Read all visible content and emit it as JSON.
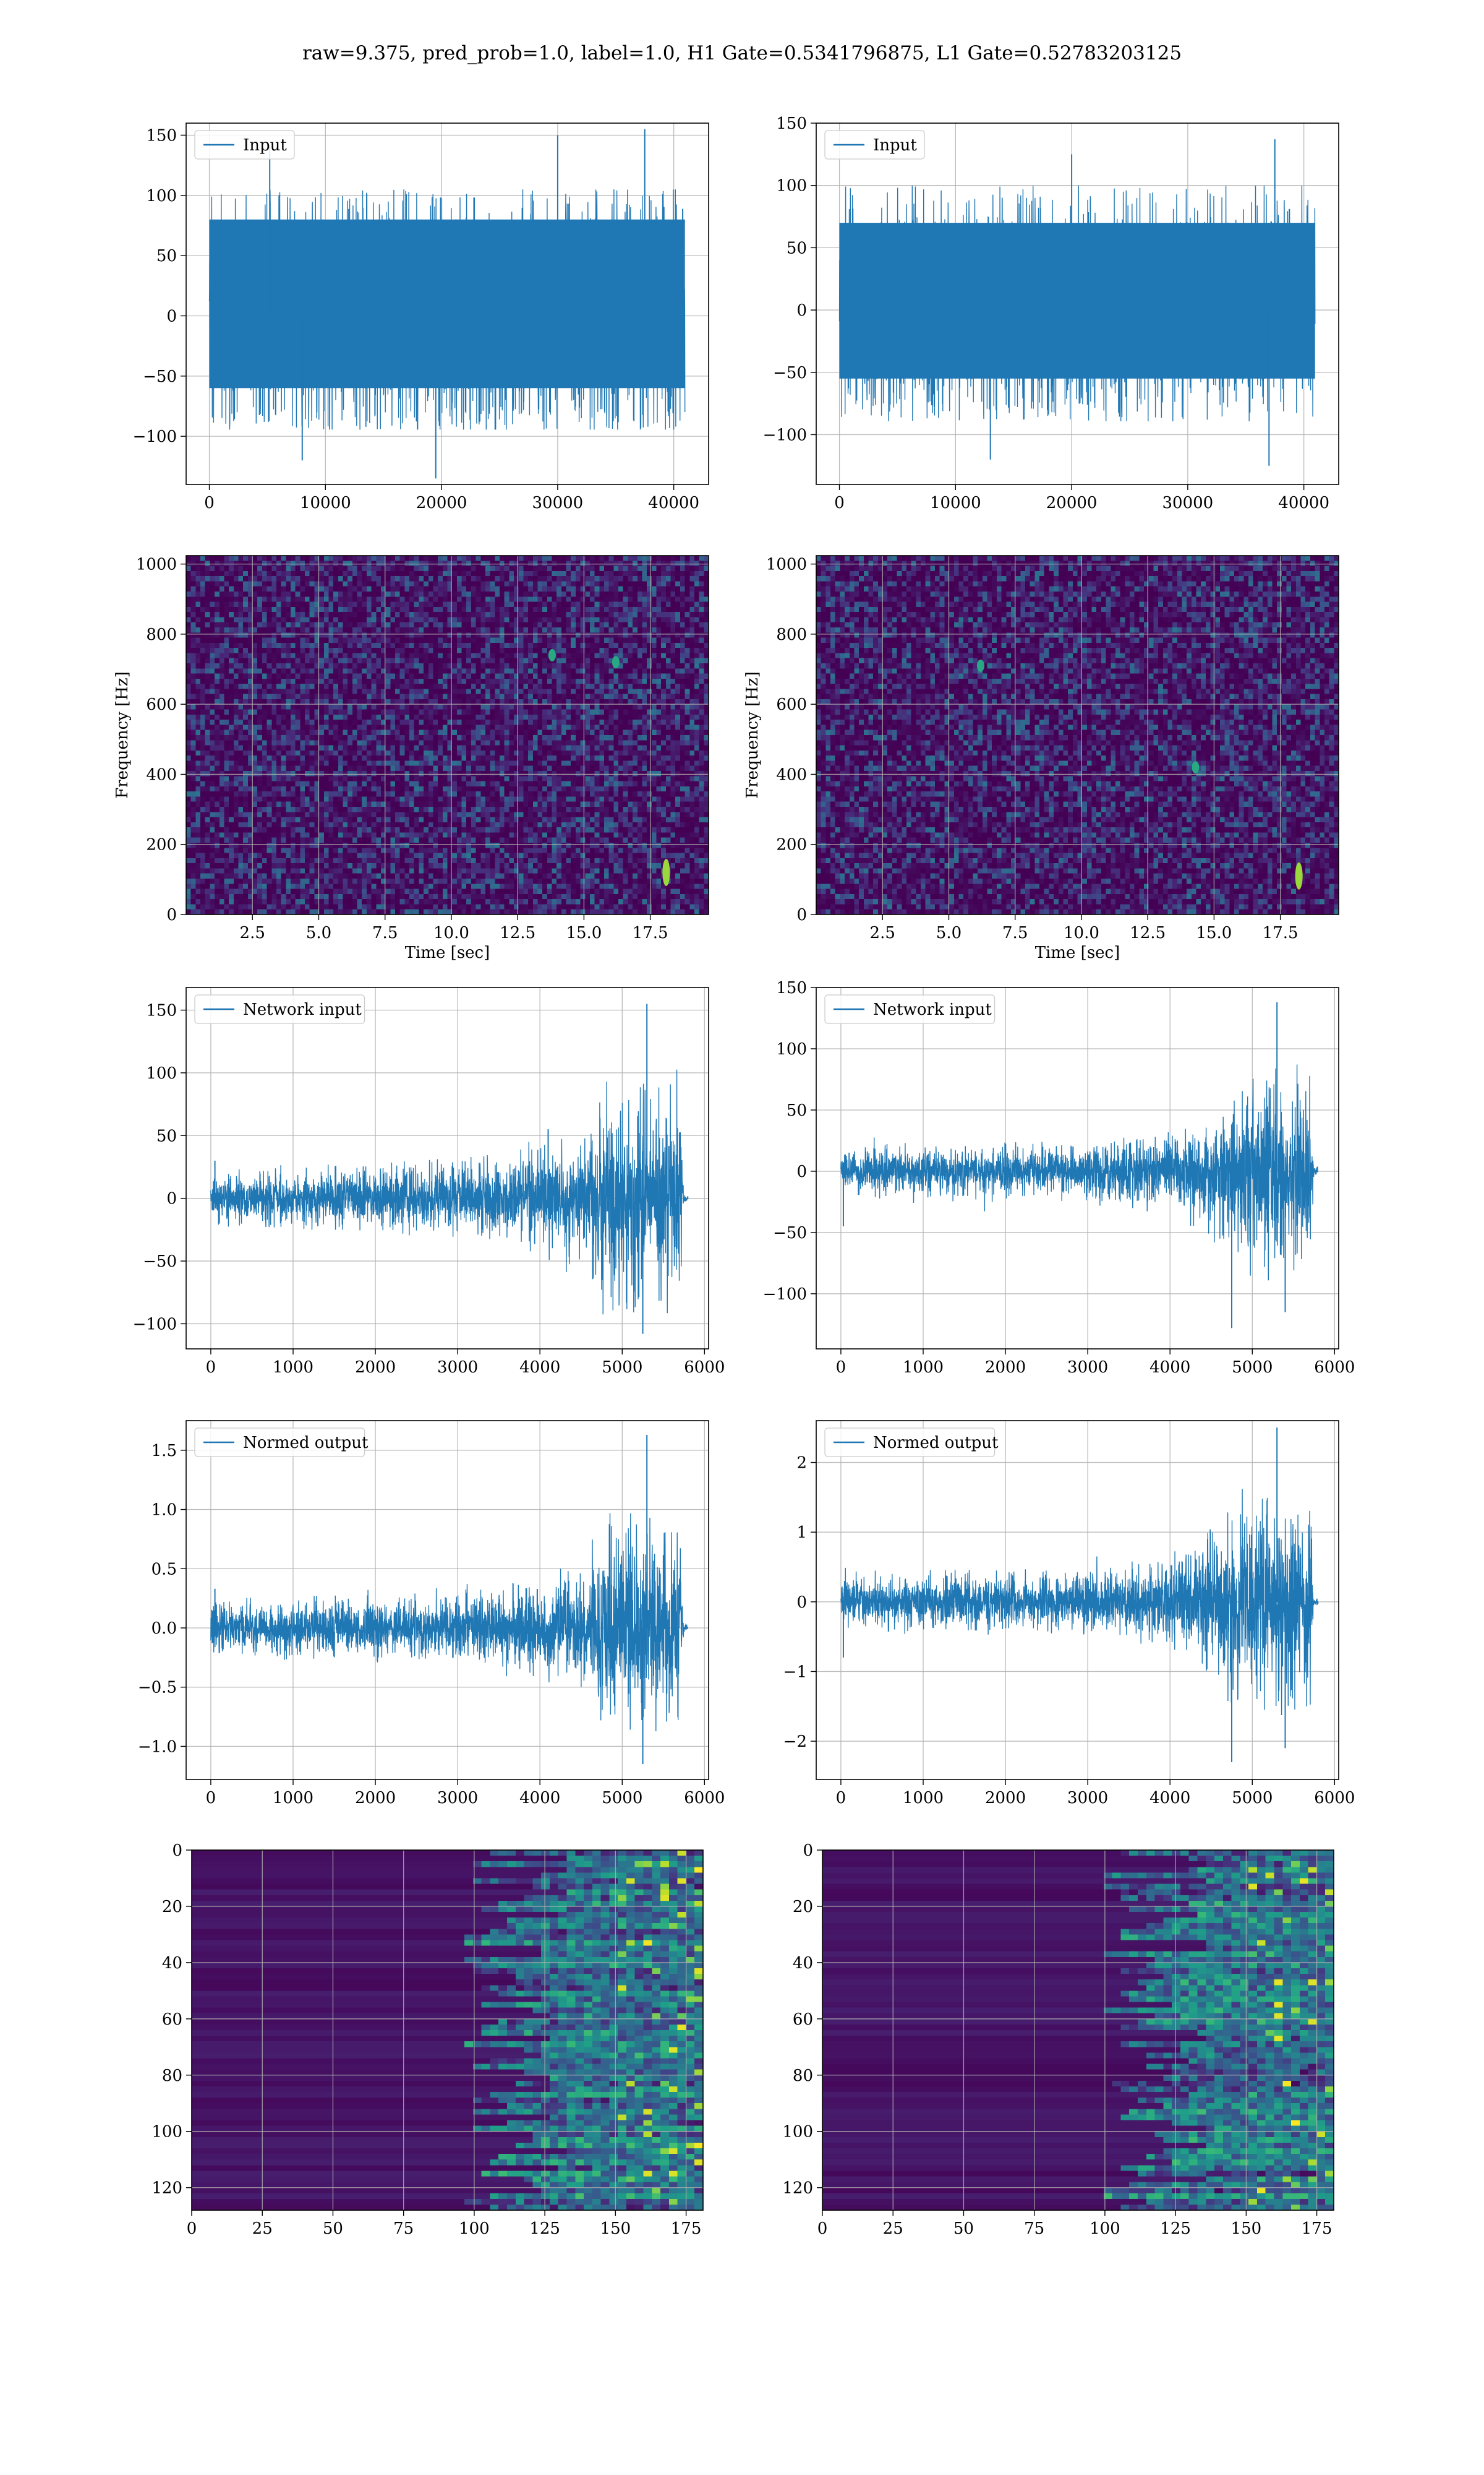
{
  "figure": {
    "suptitle": "raw=9.375, pred_prob=1.0, label=1.0, H1 Gate=0.5341796875, L1 Gate=0.52783203125",
    "line_color": "#1f77b4",
    "grid_color": "#b0b0b0",
    "colormap": "viridis"
  },
  "chart_data": [
    {
      "id": "h1-input",
      "type": "line",
      "legend": "Input",
      "xlim": [
        -2000,
        43000
      ],
      "ylim": [
        -140,
        160
      ],
      "xticks": [
        0,
        10000,
        20000,
        30000,
        40000
      ],
      "yticks": [
        -100,
        -50,
        0,
        50,
        100,
        150
      ],
      "series": [
        {
          "name": "Input",
          "x_range": [
            0,
            40960
          ],
          "envelope": [
            -90,
            100
          ],
          "core": [
            -60,
            80
          ],
          "peaks": [
            [
              5200,
              140
            ],
            [
              30000,
              150
            ],
            [
              37500,
              155
            ],
            [
              19500,
              -135
            ],
            [
              8000,
              -120
            ]
          ]
        }
      ]
    },
    {
      "id": "l1-input",
      "type": "line",
      "legend": "Input",
      "xlim": [
        -2000,
        43000
      ],
      "ylim": [
        -140,
        150
      ],
      "xticks": [
        0,
        10000,
        20000,
        30000,
        40000
      ],
      "yticks": [
        -100,
        -50,
        0,
        50,
        100,
        150
      ],
      "series": [
        {
          "name": "Input",
          "x_range": [
            0,
            40960
          ],
          "envelope": [
            -85,
            95
          ],
          "core": [
            -55,
            70
          ],
          "peaks": [
            [
              37500,
              137
            ],
            [
              20000,
              125
            ],
            [
              37000,
              -125
            ],
            [
              13000,
              -120
            ]
          ]
        }
      ]
    },
    {
      "id": "h1-spectrogram",
      "type": "heatmap",
      "xlabel": "Time [sec]",
      "ylabel": "Frequency [Hz]",
      "xlim": [
        0,
        19.7
      ],
      "ylim": [
        0,
        1024
      ],
      "xticks": [
        2.5,
        5.0,
        7.5,
        10.0,
        12.5,
        15.0,
        17.5
      ],
      "yticks": [
        0,
        200,
        400,
        600,
        800,
        1000
      ],
      "hotspots": [
        [
          18.1,
          120
        ],
        [
          13.8,
          740
        ],
        [
          16.2,
          720
        ]
      ]
    },
    {
      "id": "l1-spectrogram",
      "type": "heatmap",
      "xlabel": "Time [sec]",
      "ylabel": "Frequency [Hz]",
      "xlim": [
        0,
        19.7
      ],
      "ylim": [
        0,
        1024
      ],
      "xticks": [
        2.5,
        5.0,
        7.5,
        10.0,
        12.5,
        15.0,
        17.5
      ],
      "yticks": [
        0,
        200,
        400,
        600,
        800,
        1000
      ],
      "hotspots": [
        [
          18.2,
          110
        ],
        [
          6.2,
          710
        ],
        [
          14.3,
          420
        ]
      ]
    },
    {
      "id": "h1-network-input",
      "type": "line",
      "legend": "Network input",
      "xlim": [
        -300,
        6050
      ],
      "ylim": [
        -120,
        168
      ],
      "xticks": [
        0,
        1000,
        2000,
        3000,
        4000,
        5000,
        6000
      ],
      "yticks": [
        -100,
        -50,
        0,
        50,
        100,
        150
      ],
      "series": [
        {
          "name": "Network input",
          "x_range": [
            0,
            5800
          ],
          "amplitude": [
            [
              0,
              20
            ],
            [
              3000,
              25
            ],
            [
              4000,
              35
            ],
            [
              4600,
              45
            ],
            [
              4800,
              80
            ],
            [
              5700,
              75
            ],
            [
              5750,
              3
            ],
            [
              5800,
              3
            ]
          ],
          "peaks": [
            [
              5300,
              155
            ],
            [
              5250,
              -108
            ],
            [
              50,
              30
            ],
            [
              4100,
              55
            ]
          ]
        }
      ]
    },
    {
      "id": "l1-network-input",
      "type": "line",
      "legend": "Network input",
      "xlim": [
        -300,
        6050
      ],
      "ylim": [
        -145,
        150
      ],
      "xticks": [
        0,
        1000,
        2000,
        3000,
        4000,
        5000,
        6000
      ],
      "yticks": [
        -100,
        -50,
        0,
        50,
        100,
        150
      ],
      "series": [
        {
          "name": "Network input",
          "x_range": [
            0,
            5800
          ],
          "amplitude": [
            [
              0,
              18
            ],
            [
              3000,
              20
            ],
            [
              4000,
              28
            ],
            [
              4600,
              45
            ],
            [
              4800,
              70
            ],
            [
              5700,
              65
            ],
            [
              5750,
              4
            ],
            [
              5800,
              4
            ]
          ],
          "peaks": [
            [
              5300,
              138
            ],
            [
              4750,
              -128
            ],
            [
              5400,
              -115
            ],
            [
              30,
              -45
            ]
          ]
        }
      ]
    },
    {
      "id": "h1-normed-output",
      "type": "line",
      "legend": "Normed output",
      "xlim": [
        -300,
        6050
      ],
      "ylim": [
        -1.28,
        1.75
      ],
      "xticks": [
        0,
        1000,
        2000,
        3000,
        4000,
        5000,
        6000
      ],
      "yticks": [
        -1.0,
        -0.5,
        0.0,
        0.5,
        1.0,
        1.5
      ],
      "series": [
        {
          "name": "Normed output",
          "x_range": [
            0,
            5800
          ],
          "amplitude": [
            [
              0,
              0.2
            ],
            [
              3000,
              0.25
            ],
            [
              4000,
              0.35
            ],
            [
              4600,
              0.45
            ],
            [
              4800,
              0.8
            ],
            [
              5700,
              0.75
            ],
            [
              5750,
              0.03
            ],
            [
              5800,
              0.03
            ]
          ],
          "peaks": [
            [
              5300,
              1.63
            ],
            [
              5250,
              -1.15
            ],
            [
              50,
              0.33
            ]
          ]
        }
      ]
    },
    {
      "id": "l1-normed-output",
      "type": "line",
      "legend": "Normed output",
      "xlim": [
        -300,
        6050
      ],
      "ylim": [
        -2.55,
        2.6
      ],
      "xticks": [
        0,
        1000,
        2000,
        3000,
        4000,
        5000,
        6000
      ],
      "yticks": [
        -2,
        -1,
        0,
        1,
        2
      ],
      "series": [
        {
          "name": "Normed output",
          "x_range": [
            0,
            5800
          ],
          "amplitude": [
            [
              0,
              0.35
            ],
            [
              3000,
              0.4
            ],
            [
              4000,
              0.55
            ],
            [
              4600,
              0.9
            ],
            [
              4800,
              1.4
            ],
            [
              5700,
              1.3
            ],
            [
              5750,
              0.06
            ],
            [
              5800,
              0.06
            ]
          ],
          "peaks": [
            [
              5300,
              2.5
            ],
            [
              4750,
              -2.3
            ],
            [
              5400,
              -2.1
            ],
            [
              30,
              -0.8
            ]
          ]
        }
      ]
    },
    {
      "id": "h1-feature-map",
      "type": "heatmap",
      "xlim": [
        0,
        181
      ],
      "ylim": [
        128,
        0
      ],
      "xticks": [
        0,
        25,
        50,
        75,
        100,
        125,
        150,
        175
      ],
      "yticks": [
        0,
        20,
        40,
        60,
        80,
        100,
        120
      ],
      "onset_column": 115
    },
    {
      "id": "l1-feature-map",
      "type": "heatmap",
      "xlim": [
        0,
        181
      ],
      "ylim": [
        128,
        0
      ],
      "xticks": [
        0,
        25,
        50,
        75,
        100,
        125,
        150,
        175
      ],
      "yticks": [
        0,
        20,
        40,
        60,
        80,
        100,
        120
      ],
      "onset_column": 118
    }
  ]
}
